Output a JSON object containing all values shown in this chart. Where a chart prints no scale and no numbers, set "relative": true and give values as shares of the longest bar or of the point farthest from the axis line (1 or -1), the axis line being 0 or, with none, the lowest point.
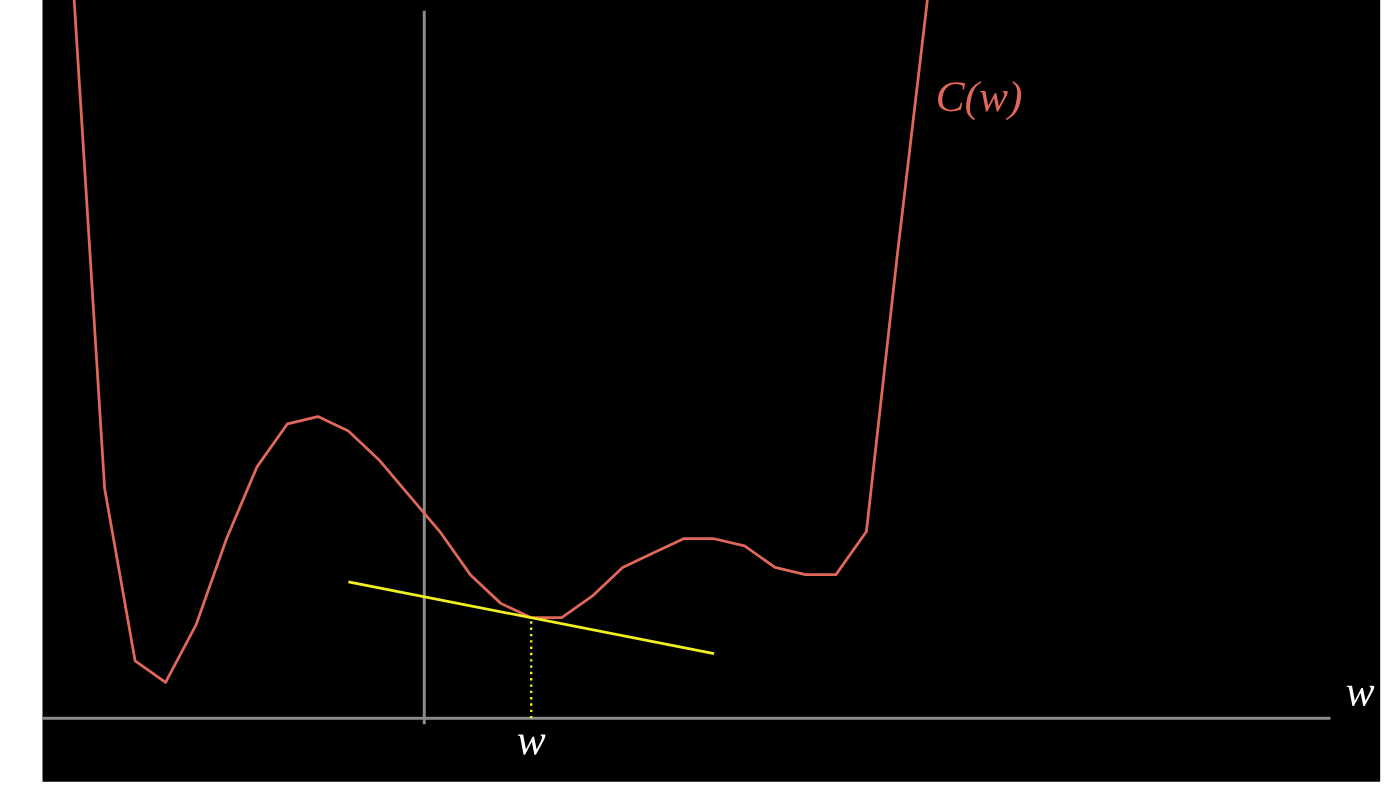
{
  "chart_data": {
    "type": "line",
    "relative": true,
    "xlabel": "w",
    "annotations": [
      "w"
    ],
    "categories": [
      null,
      null,
      null,
      null,
      null,
      null,
      null,
      null,
      null,
      null,
      null,
      null,
      null,
      null,
      null,
      null,
      null,
      null,
      null,
      null,
      null,
      null,
      null,
      null,
      null,
      null,
      null,
      null,
      null,
      null,
      null,
      null,
      null,
      null,
      null,
      null,
      null,
      null,
      null,
      null,
      null,
      null
    ],
    "series": [
      {
        "name": "C(w)",
        "color": "#e0685a",
        "values": [
          1.0,
          0.32,
          0.08,
          0.05,
          0.13,
          0.25,
          0.35,
          0.41,
          0.42,
          0.4,
          0.36,
          0.31,
          0.26,
          0.2,
          0.16,
          0.14,
          0.14,
          0.17,
          0.21,
          0.23,
          0.25,
          0.25,
          0.24,
          0.21,
          0.2,
          0.2,
          0.26,
          0.64,
          1.0,
          null,
          null,
          null,
          null,
          null,
          null,
          null,
          null,
          null,
          null,
          null,
          null,
          null
        ]
      },
      {
        "color": "#f0f020",
        "values": [
          null,
          null,
          null,
          null,
          null,
          null,
          null,
          null,
          null,
          0.19,
          null,
          null,
          null,
          null,
          null,
          null,
          null,
          null,
          null,
          null,
          null,
          0.09,
          null,
          null,
          null,
          null,
          null,
          null,
          null,
          null,
          null,
          null,
          null,
          null,
          null,
          null,
          null,
          null,
          null,
          null,
          null,
          null
        ]
      }
    ]
  }
}
